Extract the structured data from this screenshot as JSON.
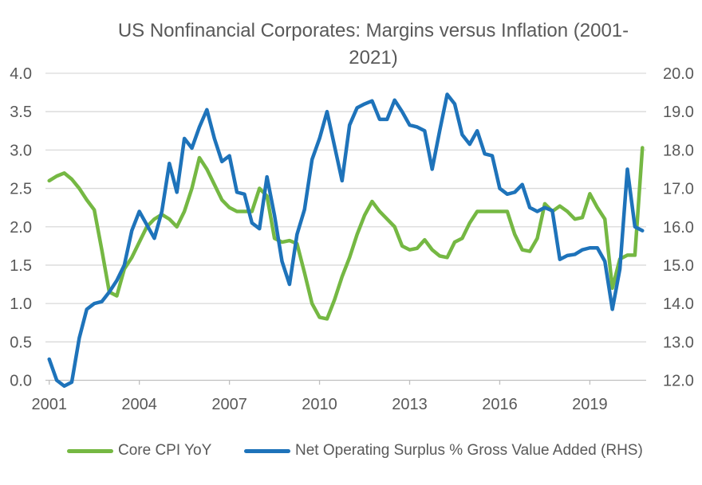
{
  "chart_data": {
    "type": "line",
    "title": "US Nonfinancial Corporates: Margins versus Inflation (2001-2021)",
    "title_lines": [
      "US Nonfinancial Corporates: Margins versus Inflation (2001-",
      "2021)"
    ],
    "grid": true,
    "legend_position": "bottom",
    "background": "#ffffff",
    "grid_color": "#d9d9d9",
    "axis_line_color": "#bfbfbf",
    "text_color": "#595959",
    "x_axis": {
      "start": "2001-Q1",
      "end": "2020-Q4",
      "frequency": "quarterly",
      "tick_labels": [
        "2001",
        "2004",
        "2007",
        "2010",
        "2013",
        "2016",
        "2019"
      ]
    },
    "left_axis": {
      "min": 0.0,
      "max": 4.0,
      "step": 0.5,
      "tick_labels": [
        "4.0",
        "3.5",
        "3.0",
        "2.5",
        "2.0",
        "1.5",
        "1.0",
        "0.5",
        "0.0"
      ]
    },
    "right_axis": {
      "min": 12.0,
      "max": 20.0,
      "step": 1.0,
      "tick_labels": [
        "20.0",
        "19.0",
        "18.0",
        "17.0",
        "16.0",
        "15.0",
        "14.0",
        "13.0",
        "12.0"
      ]
    },
    "series": [
      {
        "name": "Core CPI YoY",
        "axis": "left",
        "color": "#75b843",
        "values": [
          2.6,
          2.66,
          2.7,
          2.62,
          2.5,
          2.35,
          2.22,
          1.7,
          1.15,
          1.1,
          1.45,
          1.6,
          1.8,
          2.0,
          2.1,
          2.16,
          2.1,
          2.0,
          2.2,
          2.5,
          2.9,
          2.75,
          2.55,
          2.35,
          2.25,
          2.2,
          2.2,
          2.2,
          2.5,
          2.4,
          1.85,
          1.8,
          1.82,
          1.78,
          1.4,
          1.0,
          0.82,
          0.8,
          1.05,
          1.35,
          1.6,
          1.9,
          2.15,
          2.33,
          2.2,
          2.1,
          2.0,
          1.75,
          1.7,
          1.72,
          1.83,
          1.7,
          1.62,
          1.6,
          1.8,
          1.85,
          2.05,
          2.2,
          2.2,
          2.2,
          2.2,
          2.2,
          1.9,
          1.7,
          1.68,
          1.85,
          2.3,
          2.2,
          2.27,
          2.2,
          2.1,
          2.12,
          2.43,
          2.25,
          2.1,
          1.2,
          1.58,
          1.63,
          1.63,
          3.03
        ]
      },
      {
        "name": "Net Operating Surplus % Gross Value Added (RHS)",
        "axis": "right",
        "color": "#1e73ba",
        "values": [
          12.55,
          12.0,
          11.85,
          11.95,
          13.1,
          13.85,
          14.0,
          14.05,
          14.3,
          14.6,
          15.0,
          15.9,
          16.4,
          16.05,
          15.7,
          16.4,
          17.65,
          16.9,
          18.3,
          18.05,
          18.6,
          19.05,
          18.3,
          17.7,
          17.85,
          16.9,
          16.85,
          16.1,
          15.95,
          17.3,
          16.3,
          15.1,
          14.5,
          15.8,
          16.45,
          17.75,
          18.3,
          19.0,
          18.1,
          17.2,
          18.65,
          19.1,
          19.2,
          19.28,
          18.8,
          18.8,
          19.3,
          19.0,
          18.65,
          18.6,
          18.5,
          17.5,
          18.5,
          19.45,
          19.2,
          18.4,
          18.15,
          18.5,
          17.9,
          17.85,
          17.0,
          16.85,
          16.9,
          17.1,
          16.5,
          16.4,
          16.5,
          16.42,
          15.15,
          15.25,
          15.28,
          15.4,
          15.45,
          15.45,
          15.1,
          13.85,
          14.9,
          17.5,
          16.0,
          15.9
        ]
      }
    ]
  }
}
